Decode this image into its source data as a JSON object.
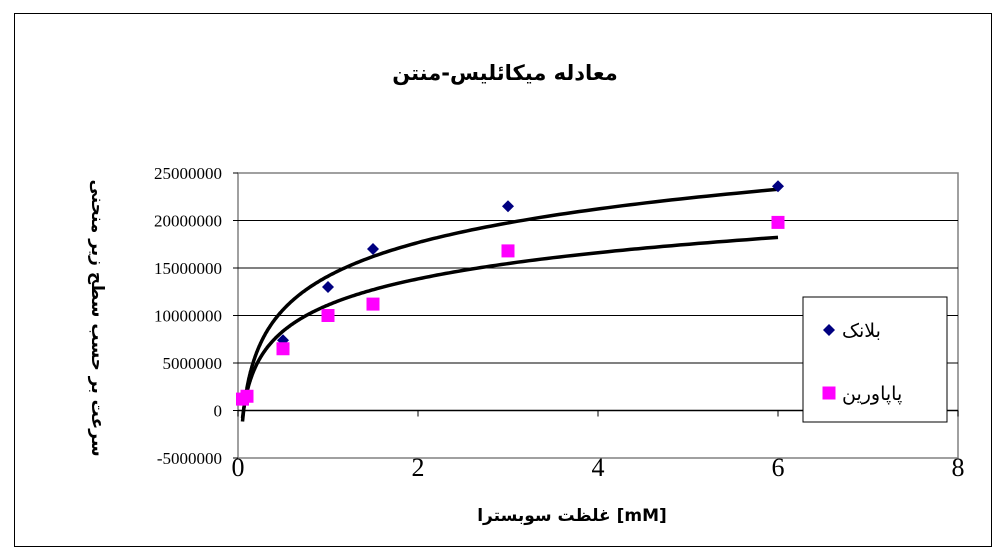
{
  "chart_data": {
    "type": "scatter",
    "title": "معادله میکائلیس-منتن",
    "xlabel": "غلظت سوبسترا [mM]",
    "ylabel": "سرعت بر حسب سطح زیر منحنی",
    "xlim": [
      0,
      8
    ],
    "ylim": [
      -5000000,
      25000000
    ],
    "x_ticks": [
      "0",
      "2",
      "4",
      "6",
      "8"
    ],
    "y_ticks": [
      "-5000000",
      "0",
      "5000000",
      "10000000",
      "15000000",
      "20000000",
      "25000000"
    ],
    "grid": "horizontal",
    "legend_position": "right",
    "series": [
      {
        "name": "بلانک",
        "marker": "diamond",
        "color": "#000080",
        "x": [
          0.05,
          0.1,
          0.5,
          1,
          1.5,
          3,
          6
        ],
        "y": [
          1200000,
          1500000,
          7400000,
          13000000,
          17000000,
          21500000,
          23600000
        ],
        "trendline": "log"
      },
      {
        "name": "پاپاورین",
        "marker": "square",
        "color": "#ff00ff",
        "x": [
          0.05,
          0.1,
          0.5,
          1,
          1.5,
          3,
          6
        ],
        "y": [
          1200000,
          1500000,
          6500000,
          10000000,
          11200000,
          16800000,
          19800000
        ],
        "trendline": "log"
      }
    ]
  }
}
